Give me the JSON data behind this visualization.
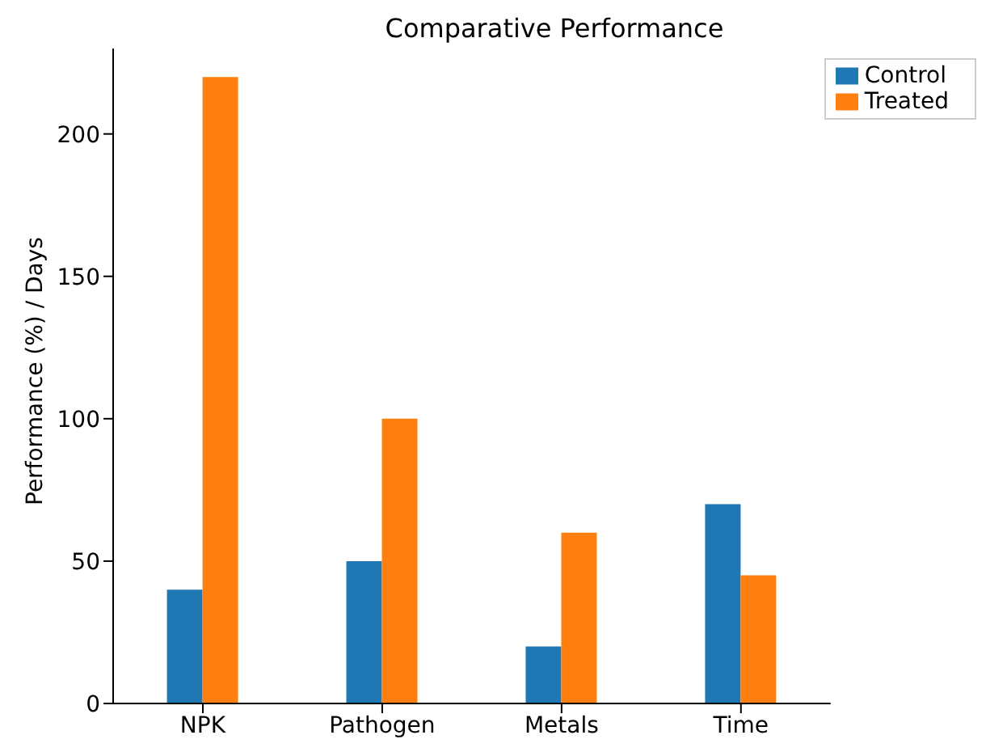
{
  "chart_data": {
    "type": "bar",
    "title": "Comparative Performance",
    "ylabel": "Performance (%) / Days",
    "categories": [
      "NPK",
      "Pathogen",
      "Metals",
      "Time"
    ],
    "series": [
      {
        "name": "Control",
        "color": "#1f77b4",
        "values": [
          40,
          50,
          20,
          70
        ]
      },
      {
        "name": "Treated",
        "color": "#ff7f0e",
        "values": [
          220,
          100,
          60,
          45
        ]
      }
    ],
    "ylim": [
      0,
      230
    ],
    "yticks": [
      0,
      50,
      100,
      150,
      200
    ],
    "grid": false,
    "legend": "top right"
  }
}
